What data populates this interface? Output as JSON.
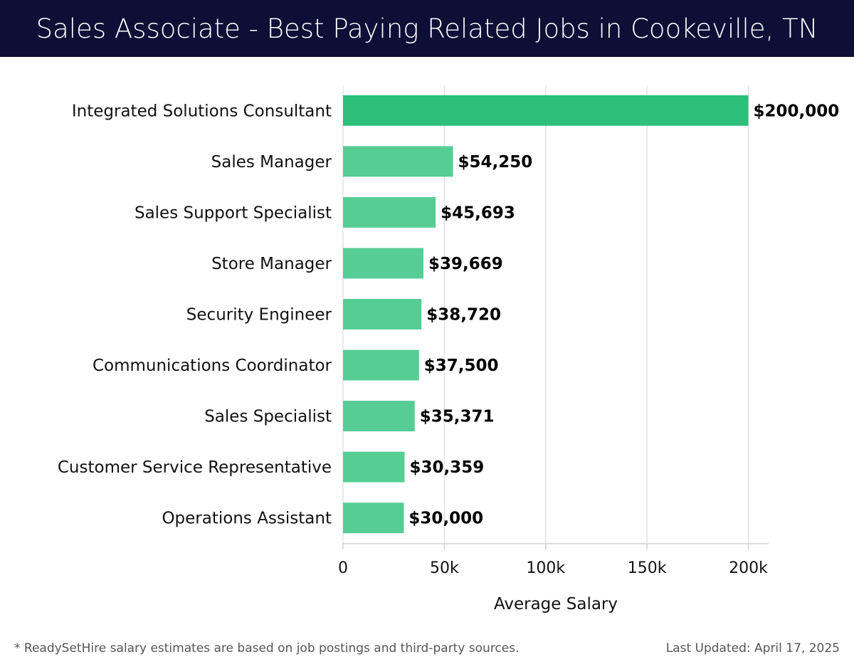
{
  "header": {
    "title": "Sales Associate - Best Paying Related Jobs in Cookeville, TN"
  },
  "chart_data": {
    "type": "bar",
    "orientation": "horizontal",
    "title": "Sales Associate - Best Paying Related Jobs in Cookeville, TN",
    "xlabel": "Average Salary",
    "ylabel": "",
    "xlim": [
      0,
      210000
    ],
    "ticks": [
      0,
      50000,
      100000,
      150000,
      200000
    ],
    "tick_labels": [
      "0",
      "50k",
      "100k",
      "150k",
      "200k"
    ],
    "grid": true,
    "categories": [
      "Integrated Solutions Consultant",
      "Sales Manager",
      "Sales Support Specialist",
      "Store Manager",
      "Security Engineer",
      "Communications Coordinator",
      "Sales Specialist",
      "Customer Service Representative",
      "Operations Assistant"
    ],
    "values": [
      200000,
      54250,
      45693,
      39669,
      38720,
      37500,
      35371,
      30359,
      30000
    ],
    "value_labels": [
      "$200,000",
      "$54,250",
      "$45,693",
      "$39,669",
      "$38,720",
      "$37,500",
      "$35,371",
      "$30,359",
      "$30,000"
    ],
    "colors": {
      "top_bar": "#2cc07a",
      "bar": "#55cd95",
      "grid": "#e3e3e3",
      "axis": "#d0d0d0"
    }
  },
  "footer": {
    "note": "* ReadySetHire salary estimates are based on job postings and third-party sources.",
    "updated": "Last Updated: April 17, 2025"
  }
}
